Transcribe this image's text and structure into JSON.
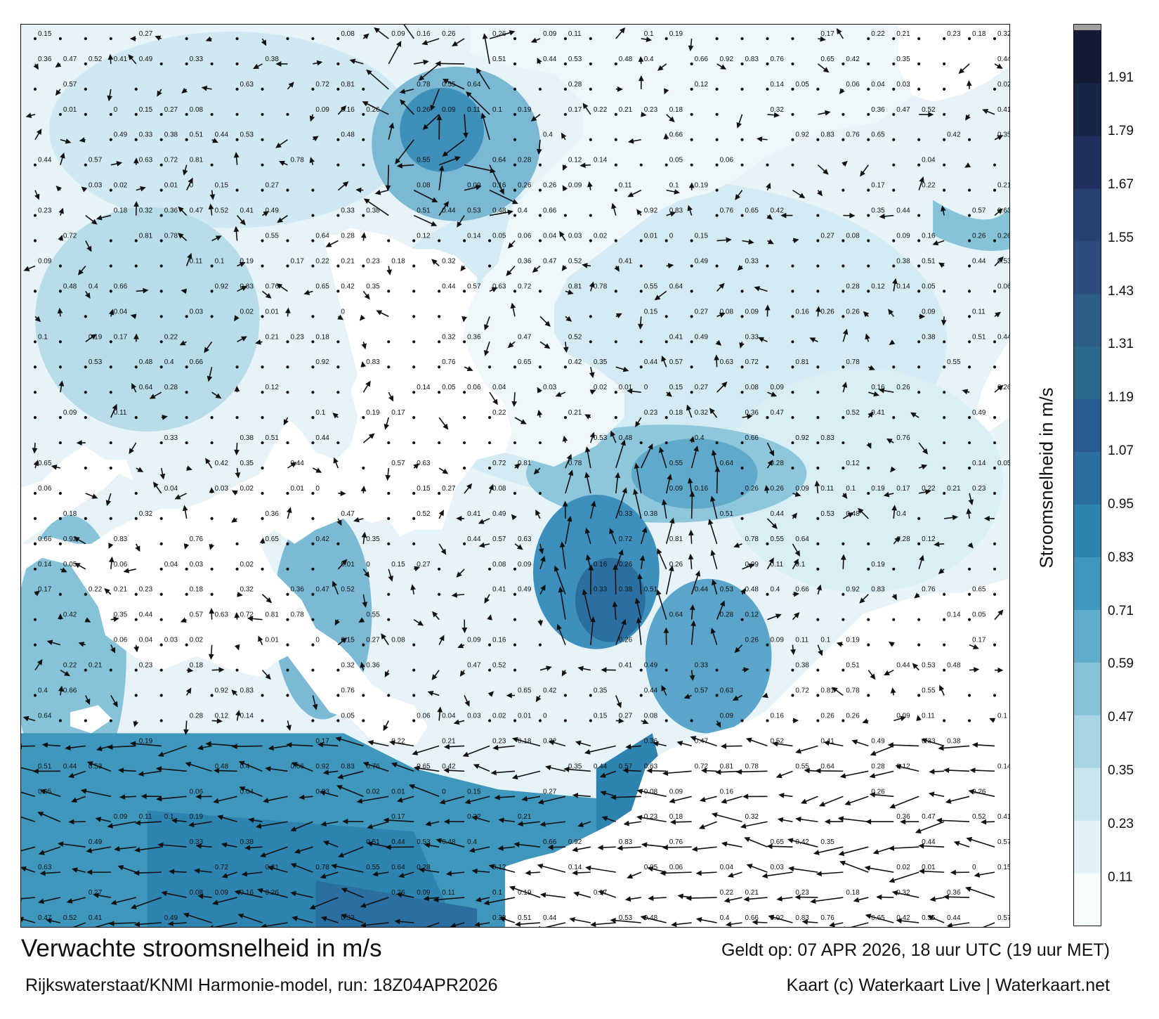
{
  "map": {
    "colorbar": {
      "label": "Stroomsnelheid in m/s",
      "ticks": [
        "1.91",
        "1.79",
        "1.67",
        "1.55",
        "1.43",
        "1.31",
        "1.19",
        "1.07",
        "0.95",
        "0.83",
        "0.71",
        "0.59",
        "0.47",
        "0.35",
        "0.23",
        "0.11"
      ],
      "tick_values": [
        1.91,
        1.79,
        1.67,
        1.55,
        1.43,
        1.31,
        1.19,
        1.07,
        0.95,
        0.83,
        0.71,
        0.59,
        0.47,
        0.35,
        0.23,
        0.11
      ],
      "range": [
        0.0,
        2.02
      ],
      "colors": [
        "#f7fcfd",
        "#e3f2f7",
        "#c9e6ef",
        "#a9d6e5",
        "#86c3d9",
        "#5fadcb",
        "#3f97bd",
        "#2e84b0",
        "#2b6fa2",
        "#2a5b94",
        "#2c6a8c",
        "#2e5d85",
        "#2c4c7c",
        "#27406f",
        "#1f2f5e",
        "#172547",
        "#141a33"
      ],
      "top_cap_color": "#a0a0a0"
    },
    "sample_labels": [
      "0.15",
      "0.27",
      "0.08",
      "0.09",
      "0.16",
      "0.26",
      "0.26",
      "0.09",
      "0.11",
      "0.1",
      "0.19",
      "0.17",
      "0.22",
      "0.21",
      "0.23",
      "0.18",
      "0.32",
      "0.36",
      "0.47",
      "0.52",
      "0.41",
      "0.49",
      "0.33",
      "0.38",
      "0.51",
      "0.44",
      "0.53",
      "0.48",
      "0.4",
      "0.66",
      "0.92",
      "0.83",
      "0.76",
      "0.65",
      "0.42",
      "0.35",
      "0.44",
      "0.57",
      "0.63",
      "0.72",
      "0.81",
      "0.78",
      "0.55",
      "0.64",
      "0.28",
      "0.12",
      "0.14",
      "0.05",
      "0.06",
      "0.04",
      "0.03",
      "0.02",
      "0.01",
      "0"
    ]
  },
  "footer": {
    "title": "Verwachte stroomsnelheid in m/s",
    "subtitle": "Rijkswaterstaat/KNMI Harmonie-model, run: 18Z04APR2026",
    "valid_time": "Geldt op: 07 APR 2026, 18 uur UTC (19 uur MET)",
    "credit": "Kaart (c) Waterkaart Live | Waterkaart.net"
  }
}
